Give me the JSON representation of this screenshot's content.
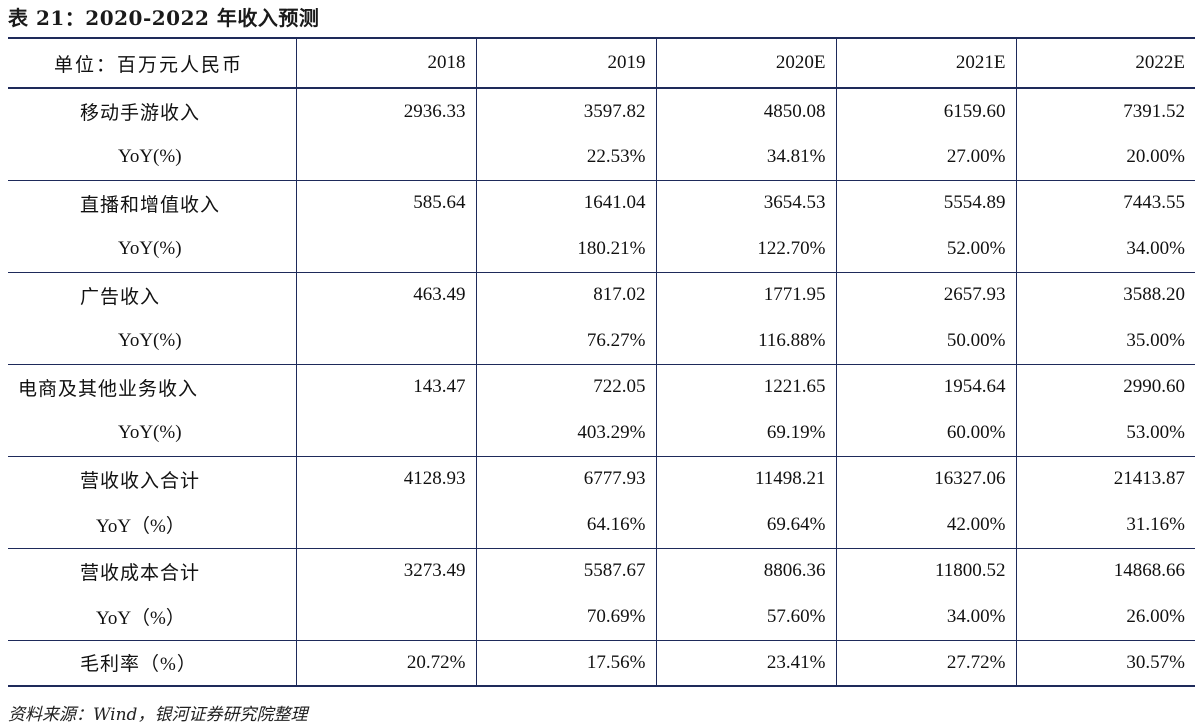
{
  "title": "表 21：2020-2022 年收入预测",
  "table": {
    "header": {
      "unit_label": "单位：百万元人民币",
      "years": [
        "2018",
        "2019",
        "2020E",
        "2021E",
        "2022E"
      ]
    },
    "groups": [
      {
        "label": "移动手游收入",
        "values": [
          "2936.33",
          "3597.82",
          "4850.08",
          "6159.60",
          "7391.52"
        ],
        "yoy_label": "YoY(%)",
        "yoy": [
          "",
          "22.53%",
          "34.81%",
          "27.00%",
          "20.00%"
        ]
      },
      {
        "label": "直播和增值收入",
        "values": [
          "585.64",
          "1641.04",
          "3654.53",
          "5554.89",
          "7443.55"
        ],
        "yoy_label": "YoY(%)",
        "yoy": [
          "",
          "180.21%",
          "122.70%",
          "52.00%",
          "34.00%"
        ]
      },
      {
        "label": "广告收入",
        "values": [
          "463.49",
          "817.02",
          "1771.95",
          "2657.93",
          "3588.20"
        ],
        "yoy_label": "YoY(%)",
        "yoy": [
          "",
          "76.27%",
          "116.88%",
          "50.00%",
          "35.00%"
        ]
      },
      {
        "label": "电商及其他业务收入",
        "values": [
          "143.47",
          "722.05",
          "1221.65",
          "1954.64",
          "2990.60"
        ],
        "yoy_label": "YoY(%)",
        "yoy": [
          "",
          "403.29%",
          "69.19%",
          "60.00%",
          "53.00%"
        ]
      },
      {
        "label": "营收收入合计",
        "values": [
          "4128.93",
          "6777.93",
          "11498.21",
          "16327.06",
          "21413.87"
        ],
        "yoy_label": "YoY（%）",
        "yoy": [
          "",
          "64.16%",
          "69.64%",
          "42.00%",
          "31.16%"
        ]
      },
      {
        "label": "营收成本合计",
        "values": [
          "3273.49",
          "5587.67",
          "8806.36",
          "11800.52",
          "14868.66"
        ],
        "yoy_label": "YoY（%）",
        "yoy": [
          "",
          "70.69%",
          "57.60%",
          "34.00%",
          "26.00%"
        ]
      }
    ],
    "margin_row": {
      "label": "毛利率（%）",
      "values": [
        "20.72%",
        "17.56%",
        "23.41%",
        "27.72%",
        "30.57%"
      ]
    }
  },
  "source": "资料来源：Wind，银河证券研究院整理"
}
